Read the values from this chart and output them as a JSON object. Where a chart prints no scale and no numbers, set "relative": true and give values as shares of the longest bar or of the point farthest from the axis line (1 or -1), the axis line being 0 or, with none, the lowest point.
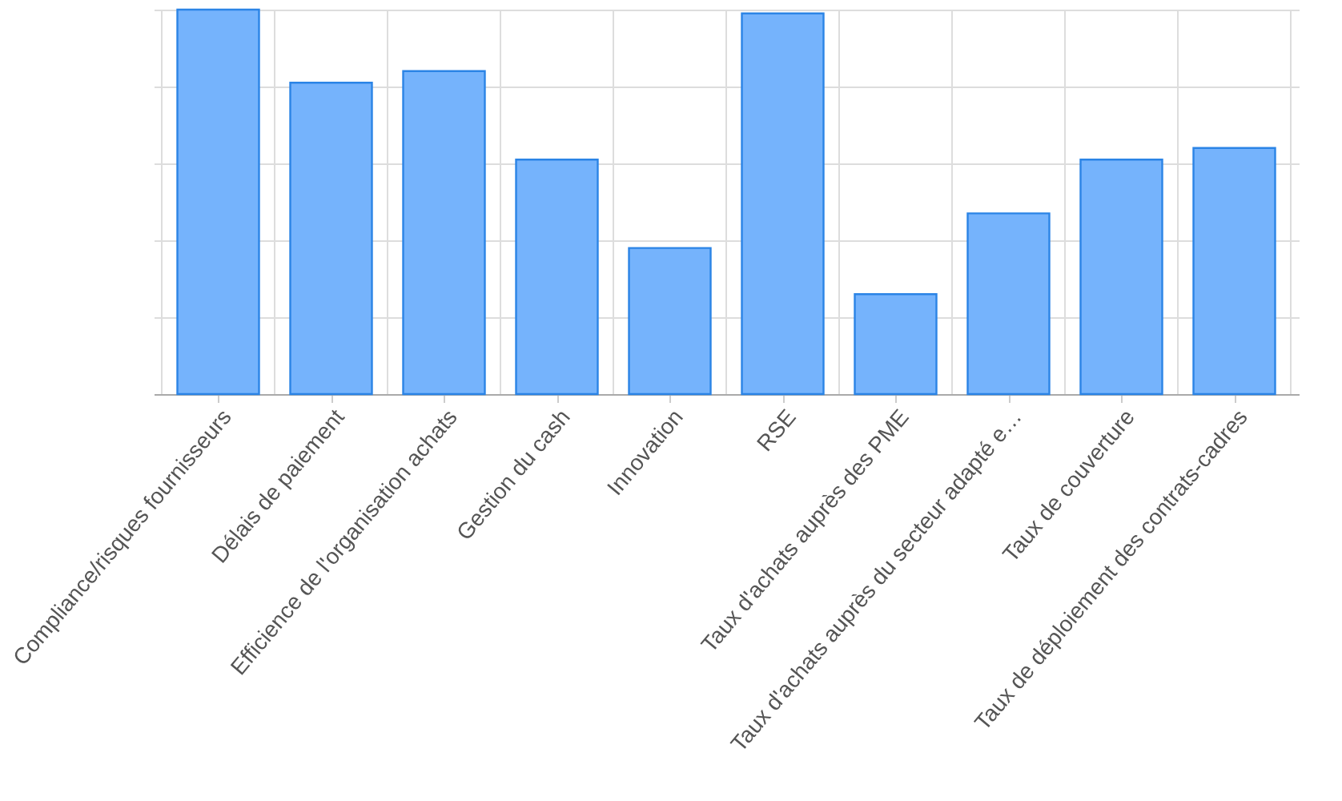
{
  "chart_data": {
    "type": "bar",
    "relative": true,
    "grid": true,
    "color": "#75b3fc",
    "categories": [
      "Compliance/risques fournisseurs",
      "Délais de paiement",
      "Efficience de l'organisation achats",
      "Gestion du cash",
      "Innovation",
      "RSE",
      "Taux d'achats auprès des PME",
      "Taux d'achats auprès du secteur adapté e…",
      "Taux de couverture",
      "Taux de déploiement des contrats-cadres"
    ],
    "values": [
      1,
      0.81,
      0.84,
      0.61,
      0.38,
      0.99,
      0.26,
      0.47,
      0.61,
      0.64
    ]
  }
}
